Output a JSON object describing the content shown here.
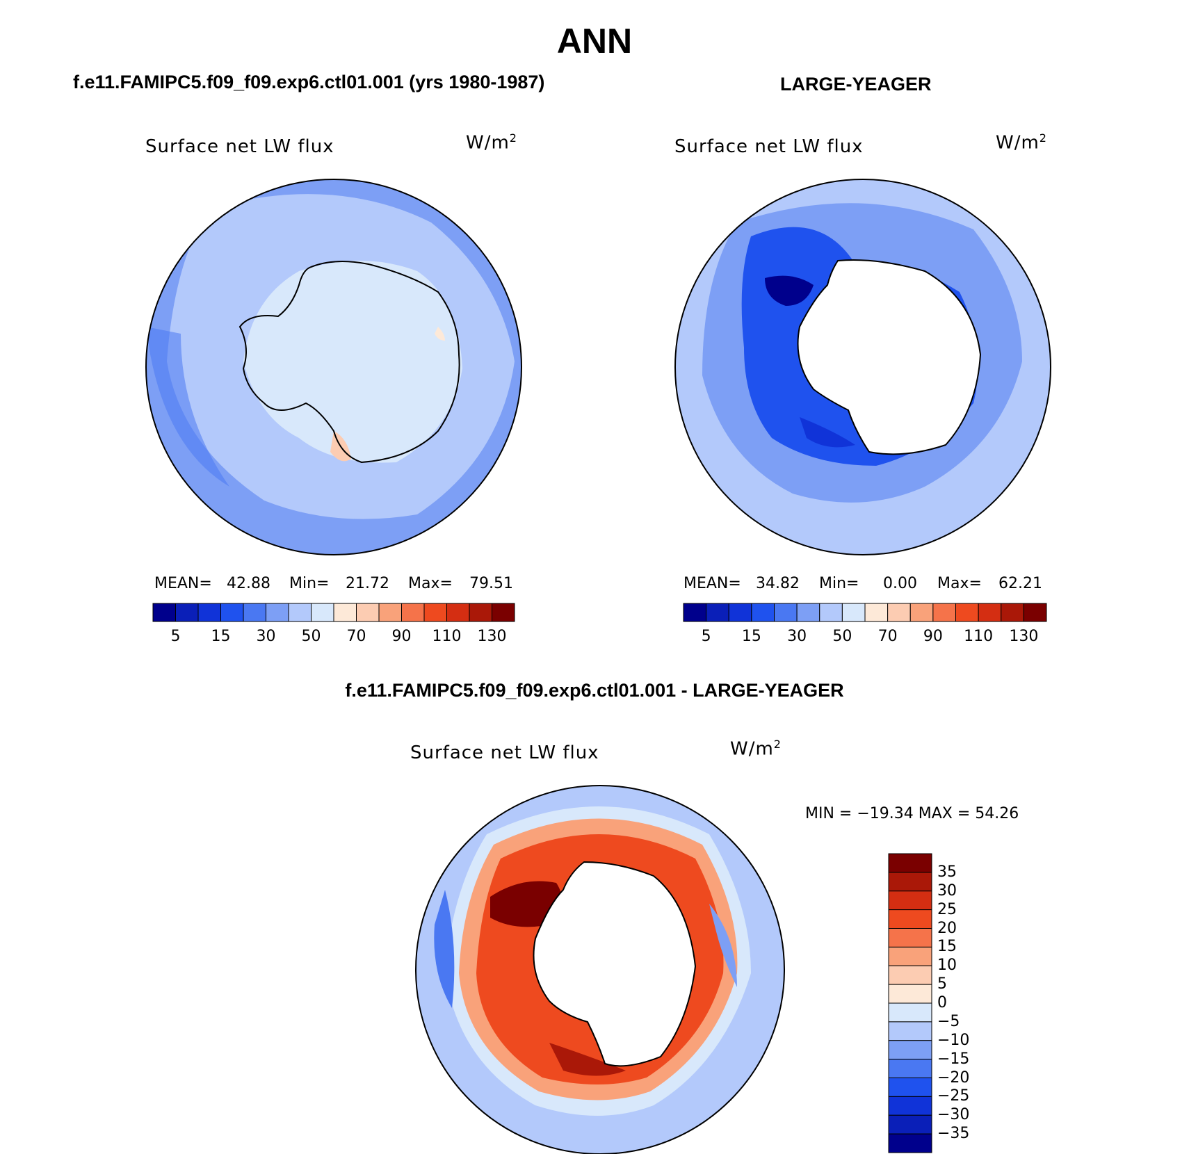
{
  "title": "ANN",
  "panels": [
    {
      "header": "f.e11.FAMIPC5.f09_f09.exp6.ctl01.001 (yrs 1980-1987)",
      "variable": "Surface net LW flux",
      "units_base": "W/m",
      "units_exp": "2",
      "mean_label": "MEAN=",
      "mean": "42.88",
      "min_label": "Min=",
      "min": "21.72",
      "max_label": "Max=",
      "max": "79.51"
    },
    {
      "header": "LARGE-YEAGER",
      "variable": "Surface net LW flux",
      "units_base": "W/m",
      "units_exp": "2",
      "mean_label": "MEAN=",
      "mean": "34.82",
      "min_label": "Min=",
      "min": "0.00",
      "max_label": "Max=",
      "max": "62.21"
    }
  ],
  "diff": {
    "header": "f.e11.FAMIPC5.f09_f09.exp6.ctl01.001 - LARGE-YEAGER",
    "variable": "Surface net LW flux",
    "units_base": "W/m",
    "units_exp": "2",
    "minmax_text": "MIN = −19.34 MAX =  54.26"
  },
  "colorbar_abs": {
    "colors": [
      "#00008c",
      "#0a1fb8",
      "#1033d8",
      "#1f52ee",
      "#4a78f2",
      "#7d9ff5",
      "#b3c9fb",
      "#d8e8fb",
      "#fde9d8",
      "#fcccb2",
      "#f9a27a",
      "#f5734a",
      "#ee4a1f",
      "#d42e12",
      "#aa1808",
      "#7a0000"
    ],
    "tick_labels": [
      "5",
      "15",
      "30",
      "50",
      "70",
      "90",
      "110",
      "130"
    ]
  },
  "colorbar_diff": {
    "colors": [
      "#7a0000",
      "#aa1808",
      "#d42e12",
      "#ee4a1f",
      "#f5734a",
      "#f9a27a",
      "#fcccb2",
      "#fde9d8",
      "#d8e8fb",
      "#b3c9fb",
      "#7d9ff5",
      "#4a78f2",
      "#1f52ee",
      "#1033d8",
      "#0a1fb8",
      "#00008c"
    ],
    "tick_labels": [
      "35",
      "30",
      "25",
      "20",
      "15",
      "10",
      "5",
      "0",
      "−5",
      "−10",
      "−15",
      "−20",
      "−25",
      "−30",
      "−35"
    ]
  }
}
